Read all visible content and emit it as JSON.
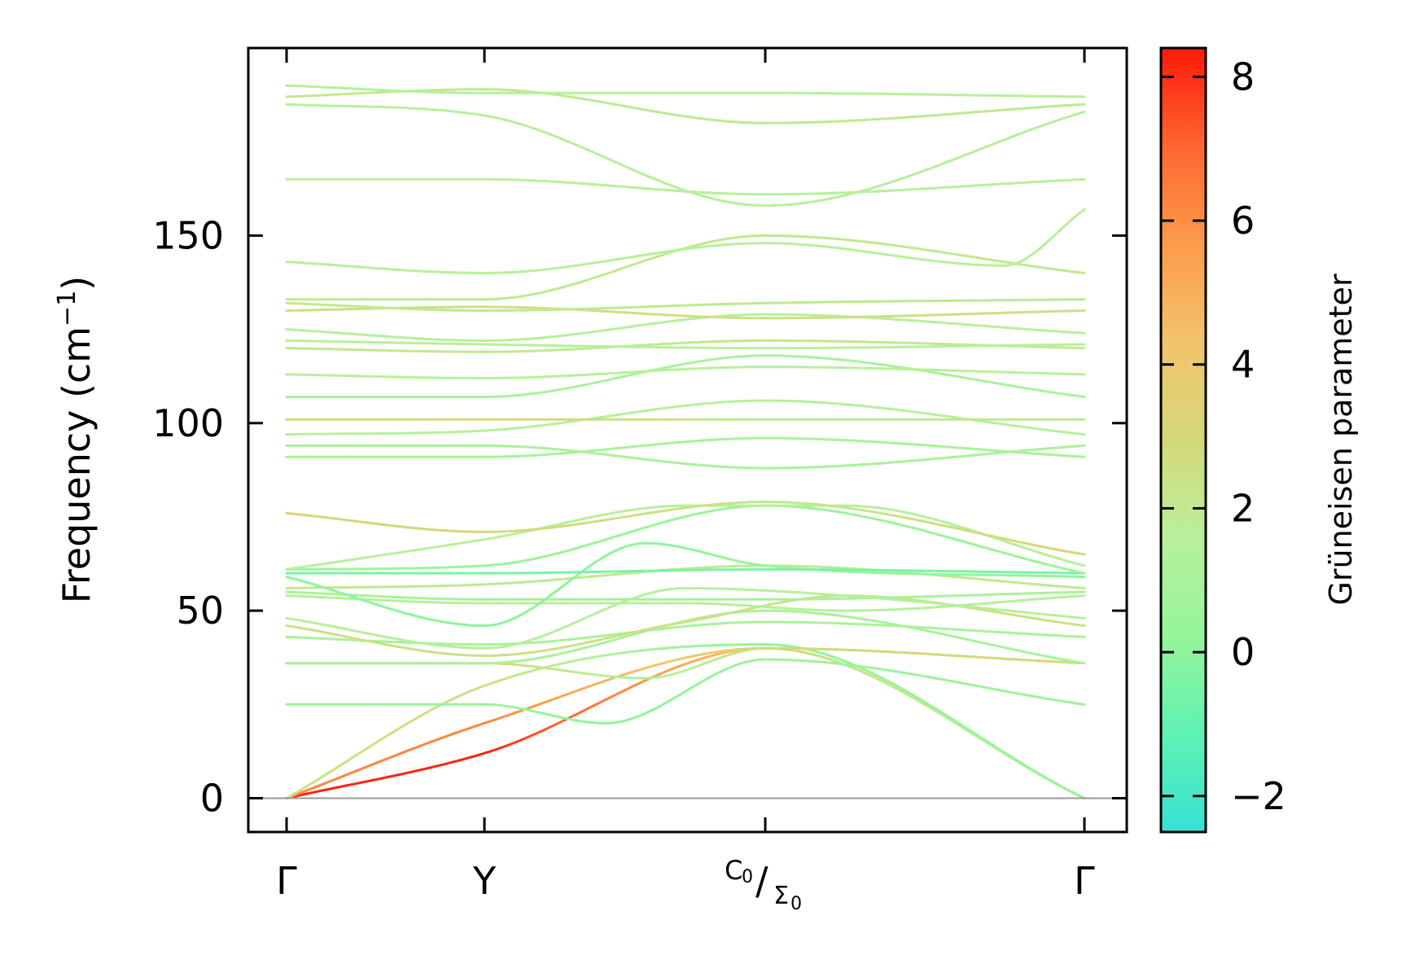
{
  "chart_data": {
    "type": "line",
    "ylabel": "Frequency (cm",
    "ylabel_sup": "−1",
    "ylabel_close": ")",
    "ylim": [
      -9,
      200
    ],
    "yticks": [
      0,
      50,
      100,
      150
    ],
    "x_points": [
      {
        "pos": 0.0,
        "label": "Γ"
      },
      {
        "pos": 0.248,
        "label": "Y"
      },
      {
        "pos": 0.6,
        "main": "C",
        "main_sub": "0",
        "slash": "/",
        "second": "Σ",
        "second_sub": "0"
      },
      {
        "pos": 1.0,
        "label": "Γ"
      }
    ],
    "colorbar": {
      "label": "Grüneisen parameter",
      "range": [
        -2.5,
        8.4
      ],
      "ticks": [
        -2,
        0,
        2,
        4,
        6,
        8
      ],
      "tick_labels": [
        "−2",
        "0",
        "2",
        "4",
        "6",
        "8"
      ],
      "colormap": [
        "#37e1d5",
        "#5ff2b4",
        "#96f59a",
        "#b9f09b",
        "#d4d97a",
        "#f1c46c",
        "#fd9b4a",
        "#fe6630",
        "#fe1a0a"
      ]
    },
    "zero_line": 0,
    "bands": [
      {
        "x": [
          0,
          0.248,
          0.6,
          1
        ],
        "y": [
          0,
          12,
          40,
          0
        ],
        "g": [
          8.2,
          8.2,
          4.0,
          1.0
        ]
      },
      {
        "x": [
          0,
          0.248,
          0.6,
          1
        ],
        "y": [
          0,
          20,
          40,
          0
        ],
        "g": [
          6.2,
          6.2,
          3.0,
          1.0
        ]
      },
      {
        "x": [
          0,
          0.248,
          0.6,
          1
        ],
        "y": [
          0,
          30,
          41,
          0
        ],
        "g": [
          2.5,
          2.5,
          0.0,
          0.5
        ]
      },
      {
        "x": [
          0,
          0.248,
          0.4,
          0.6,
          1
        ],
        "y": [
          25,
          25,
          20,
          37,
          25
        ],
        "g": [
          0.5,
          0.5,
          0.0,
          0.5,
          0.5
        ]
      },
      {
        "x": [
          0,
          0.248,
          0.45,
          0.6,
          1
        ],
        "y": [
          36,
          36,
          32,
          40,
          36
        ],
        "g": [
          3.0,
          3.0,
          1.0,
          3.0,
          3.0
        ]
      },
      {
        "x": [
          0,
          0.248,
          0.6,
          1
        ],
        "y": [
          36,
          36,
          50,
          36
        ],
        "g": [
          1.0,
          1.0,
          1.0,
          1.0
        ]
      },
      {
        "x": [
          0,
          0.248,
          0.6,
          1
        ],
        "y": [
          43,
          41,
          47,
          43
        ],
        "g": [
          1.0,
          1.0,
          1.0,
          1.0
        ]
      },
      {
        "x": [
          0,
          0.248,
          0.5,
          0.7,
          1
        ],
        "y": [
          46,
          38,
          47,
          54,
          46
        ],
        "g": [
          2.5,
          2.5,
          2.5,
          2.5,
          2.5
        ]
      },
      {
        "x": [
          0,
          0.248,
          0.5,
          0.7,
          1
        ],
        "y": [
          48,
          40,
          56,
          54,
          48
        ],
        "g": [
          1.5,
          1.5,
          1.5,
          1.5,
          1.5
        ]
      },
      {
        "x": [
          0,
          0.248,
          0.5,
          0.7,
          1
        ],
        "y": [
          54,
          52,
          52,
          50,
          54
        ],
        "g": [
          1.5,
          1.5,
          1.5,
          1.5,
          1.5
        ]
      },
      {
        "x": [
          0,
          0.248,
          0.6,
          1
        ],
        "y": [
          55,
          53,
          53,
          55
        ],
        "g": [
          1.0,
          1.0,
          1.0,
          1.0
        ]
      },
      {
        "x": [
          0,
          0.248,
          0.6,
          1
        ],
        "y": [
          56,
          57,
          62,
          56
        ],
        "g": [
          2.0,
          2.0,
          2.0,
          2.0
        ]
      },
      {
        "x": [
          0,
          0.248,
          0.45,
          0.6,
          1
        ],
        "y": [
          59,
          46,
          68,
          62,
          59
        ],
        "g": [
          0.0,
          0.0,
          0.0,
          0.5,
          0.0
        ]
      },
      {
        "x": [
          0,
          0.248,
          0.6,
          1
        ],
        "y": [
          60,
          60,
          61,
          60
        ],
        "g": [
          -0.5,
          -0.5,
          -0.5,
          -0.5
        ]
      },
      {
        "x": [
          0,
          0.248,
          0.6,
          1
        ],
        "y": [
          61,
          62,
          78,
          60
        ],
        "g": [
          0.5,
          0.5,
          0.5,
          0.5
        ]
      },
      {
        "x": [
          0,
          0.248,
          0.5,
          0.7,
          1
        ],
        "y": [
          61,
          69,
          78,
          78,
          62
        ],
        "g": [
          1.5,
          1.5,
          1.5,
          1.5,
          1.5
        ]
      },
      {
        "x": [
          0,
          0.248,
          0.6,
          1
        ],
        "y": [
          76,
          71,
          79,
          65
        ],
        "g": [
          3.0,
          3.0,
          2.0,
          3.0
        ]
      },
      {
        "x": [
          0,
          0.248,
          0.6,
          1
        ],
        "y": [
          91,
          91,
          96,
          91
        ],
        "g": [
          1.0,
          1.0,
          1.0,
          1.0
        ]
      },
      {
        "x": [
          0,
          0.248,
          0.6,
          1
        ],
        "y": [
          94,
          94,
          88,
          94
        ],
        "g": [
          1.0,
          1.0,
          1.0,
          1.0
        ]
      },
      {
        "x": [
          0,
          0.248,
          0.6,
          1
        ],
        "y": [
          97,
          98,
          106,
          97
        ],
        "g": [
          1.5,
          1.5,
          1.5,
          1.5
        ]
      },
      {
        "x": [
          0,
          0.248,
          0.6,
          1
        ],
        "y": [
          101,
          101,
          101,
          101
        ],
        "g": [
          3.0,
          3.0,
          2.0,
          2.0
        ]
      },
      {
        "x": [
          0,
          0.248,
          0.6,
          1
        ],
        "y": [
          107,
          107,
          118,
          107
        ],
        "g": [
          1.0,
          1.0,
          1.0,
          1.0
        ]
      },
      {
        "x": [
          0,
          0.248,
          0.6,
          1
        ],
        "y": [
          113,
          112,
          115,
          113
        ],
        "g": [
          1.5,
          1.5,
          1.5,
          1.5
        ]
      },
      {
        "x": [
          0,
          0.248,
          0.6,
          1
        ],
        "y": [
          120,
          119,
          122,
          120
        ],
        "g": [
          2.0,
          2.0,
          2.0,
          2.0
        ]
      },
      {
        "x": [
          0,
          0.248,
          0.6,
          1
        ],
        "y": [
          122,
          121,
          120,
          121
        ],
        "g": [
          1.5,
          1.5,
          1.5,
          1.5
        ]
      },
      {
        "x": [
          0,
          0.248,
          0.6,
          1
        ],
        "y": [
          125,
          122,
          129,
          124
        ],
        "g": [
          1.5,
          1.5,
          1.5,
          1.5
        ]
      },
      {
        "x": [
          0,
          0.248,
          0.6,
          1
        ],
        "y": [
          130,
          131,
          128,
          130
        ],
        "g": [
          2.5,
          2.5,
          2.5,
          2.5
        ]
      },
      {
        "x": [
          0,
          0.248,
          0.6,
          1
        ],
        "y": [
          132,
          130,
          132,
          133
        ],
        "g": [
          2.0,
          2.0,
          2.0,
          2.0
        ]
      },
      {
        "x": [
          0,
          0.248,
          0.6,
          1
        ],
        "y": [
          133,
          133,
          150,
          140
        ],
        "g": [
          2.0,
          2.0,
          2.0,
          2.0
        ]
      },
      {
        "x": [
          0,
          0.248,
          0.6,
          0.9,
          1
        ],
        "y": [
          143,
          140,
          148,
          142,
          157
        ],
        "g": [
          1.5,
          1.5,
          1.5,
          1.5,
          1.5
        ]
      },
      {
        "x": [
          0,
          0.248,
          0.6,
          1
        ],
        "y": [
          165,
          165,
          161,
          165
        ],
        "g": [
          1.5,
          1.5,
          1.5,
          1.5
        ]
      },
      {
        "x": [
          0,
          0.248,
          0.6,
          1
        ],
        "y": [
          185,
          182,
          158,
          183
        ],
        "g": [
          1.5,
          1.5,
          1.5,
          1.5
        ]
      },
      {
        "x": [
          0,
          0.248,
          0.6,
          1
        ],
        "y": [
          187,
          189,
          180,
          185
        ],
        "g": [
          2.0,
          2.0,
          2.0,
          2.0
        ]
      },
      {
        "x": [
          0,
          0.248,
          0.6,
          1
        ],
        "y": [
          190,
          188,
          188,
          187
        ],
        "g": [
          1.5,
          1.5,
          1.5,
          1.5
        ]
      }
    ]
  }
}
